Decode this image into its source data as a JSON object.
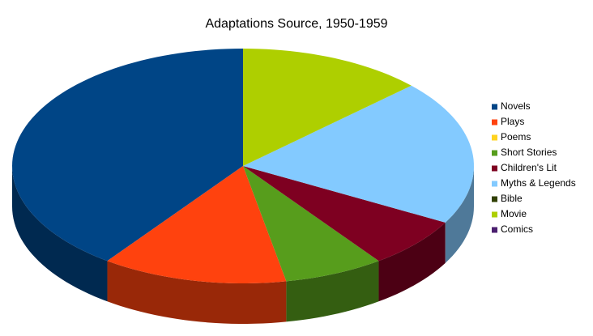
{
  "chart_data": {
    "type": "pie",
    "title": "Adaptations Source, 1950-1959",
    "categories": [
      "Novels",
      "Plays",
      "Poems",
      "Short Stories",
      "Children's Lit",
      "Myths & Legends",
      "Bible",
      "Movie",
      "Comics"
    ],
    "values": [
      40,
      13,
      0,
      7,
      7,
      20,
      0,
      13,
      0
    ],
    "colors": [
      "#004586",
      "#ff420e",
      "#ffd320",
      "#579d1c",
      "#7e0021",
      "#83caff",
      "#314004",
      "#aecf00",
      "#4b1f6f"
    ],
    "legend": "right"
  }
}
